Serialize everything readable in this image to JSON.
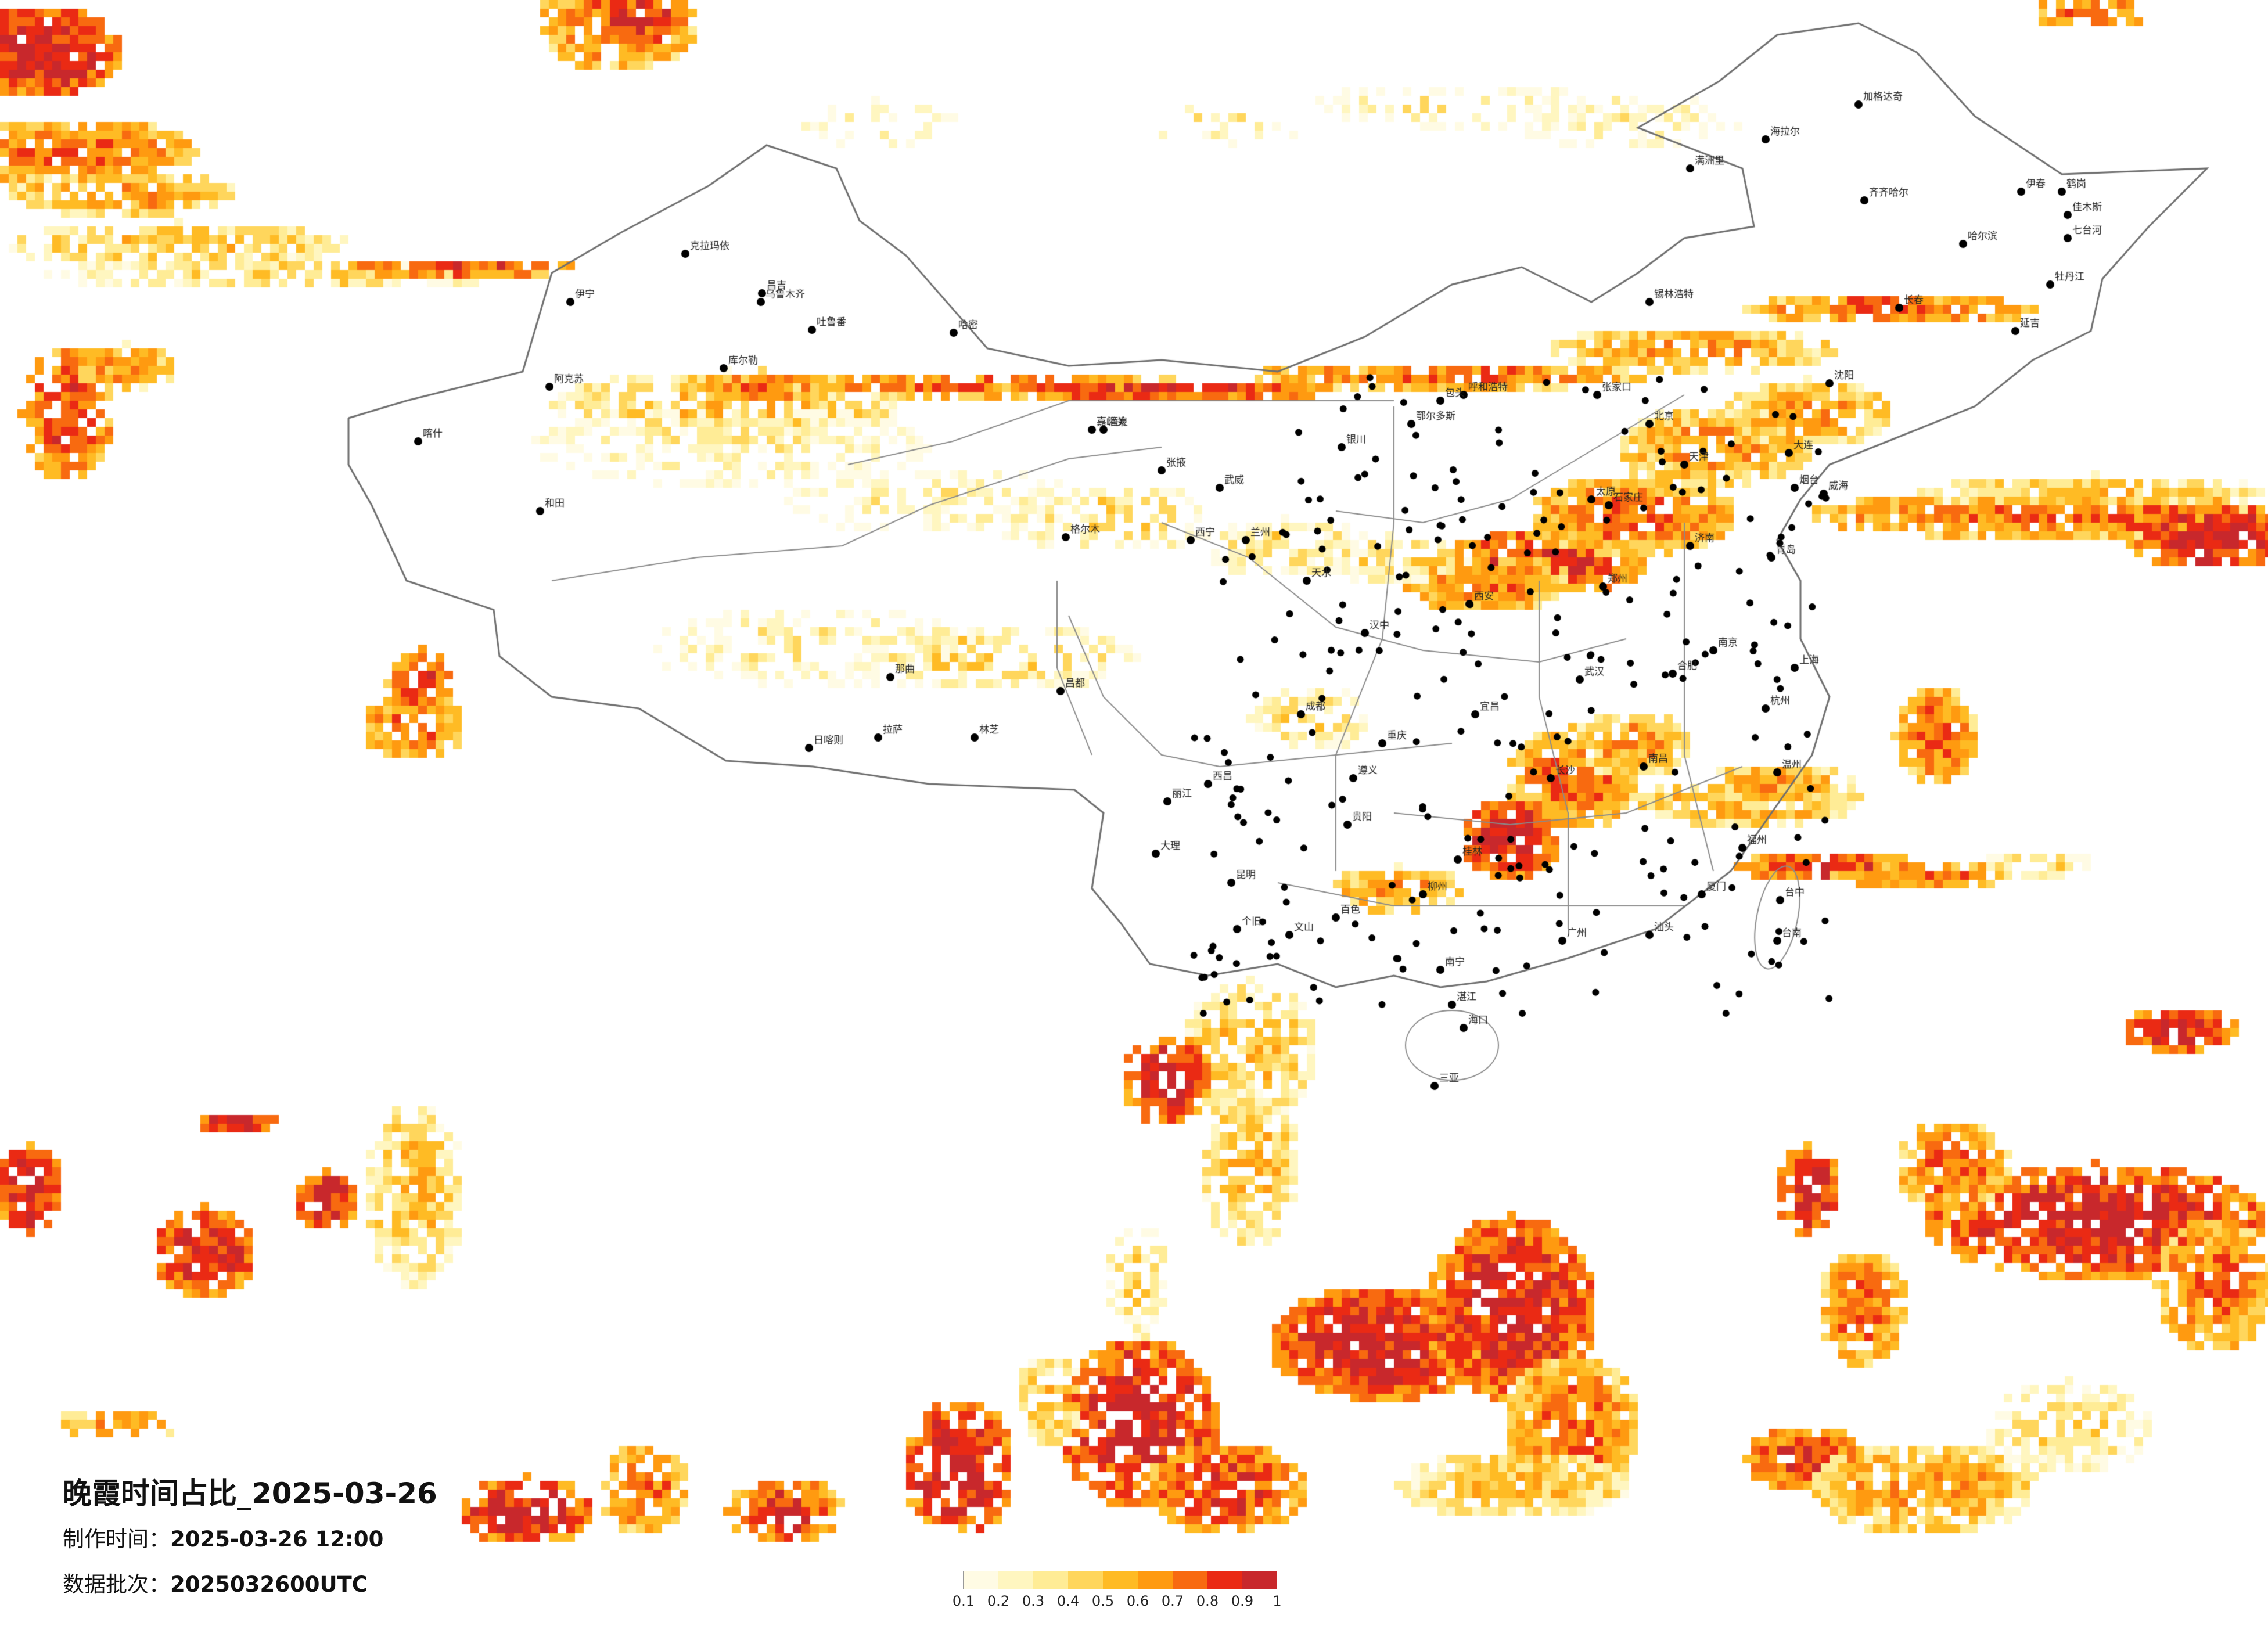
{
  "title": "晚霞时间占比_2025-03-26",
  "made_time_label": "制作时间：",
  "made_time_value": "2025-03-26 12:00",
  "batch_label": "数据批次：",
  "batch_value": "2025032600UTC",
  "legend": {
    "ticks": [
      "0.1",
      "0.2",
      "0.3",
      "0.4",
      "0.5",
      "0.6",
      "0.7",
      "0.8",
      "0.9",
      "1"
    ],
    "colors": [
      "#fffbe4",
      "#fff6c0",
      "#ffec96",
      "#ffd65c",
      "#ffbb24",
      "#ff9a10",
      "#f86a10",
      "#ea2a14",
      "#c8282c"
    ]
  },
  "cities": [
    {
      "name": "乌鲁木齐",
      "dot": [
        1310,
        520
      ]
    },
    {
      "name": "昌吉",
      "dot": [
        1312,
        505
      ]
    },
    {
      "name": "克拉玛依",
      "dot": [
        1180,
        437
      ]
    },
    {
      "name": "伊宁",
      "dot": [
        982,
        520
      ]
    },
    {
      "name": "吐鲁番",
      "dot": [
        1398,
        568
      ]
    },
    {
      "name": "哈密",
      "dot": [
        1642,
        573
      ]
    },
    {
      "name": "库尔勒",
      "dot": [
        1246,
        634
      ]
    },
    {
      "name": "阿克苏",
      "dot": [
        946,
        666
      ]
    },
    {
      "name": "喀什",
      "dot": [
        720,
        760
      ]
    },
    {
      "name": "和田",
      "dot": [
        930,
        880
      ]
    },
    {
      "name": "拉萨",
      "dot": [
        1512,
        1270
      ]
    },
    {
      "name": "日喀则",
      "dot": [
        1393,
        1288
      ]
    },
    {
      "name": "那曲",
      "dot": [
        1533,
        1166
      ]
    },
    {
      "name": "林芝",
      "dot": [
        1678,
        1270
      ]
    },
    {
      "name": "昌都",
      "dot": [
        1826,
        1190
      ]
    },
    {
      "name": "西宁",
      "dot": [
        2050,
        930
      ]
    },
    {
      "name": "格尔木",
      "dot": [
        1835,
        925
      ]
    },
    {
      "name": "兰州",
      "dot": [
        2145,
        930
      ]
    },
    {
      "name": "银川",
      "dot": [
        2310,
        770
      ]
    },
    {
      "name": "呼和浩特",
      "dot": [
        2520,
        680
      ]
    },
    {
      "name": "包头",
      "dot": [
        2480,
        690
      ]
    },
    {
      "name": "西安",
      "dot": [
        2530,
        1040
      ]
    },
    {
      "name": "太原",
      "dot": [
        2740,
        860
      ]
    },
    {
      "name": "北京",
      "dot": [
        2840,
        730
      ]
    },
    {
      "name": "天津",
      "dot": [
        2900,
        800
      ]
    },
    {
      "name": "石家庄",
      "dot": [
        2770,
        870
      ]
    },
    {
      "name": "济南",
      "dot": [
        2910,
        940
      ]
    },
    {
      "name": "郑州",
      "dot": [
        2760,
        1010
      ]
    },
    {
      "name": "武汉",
      "dot": [
        2720,
        1170
      ]
    },
    {
      "name": "长沙",
      "dot": [
        2670,
        1340
      ]
    },
    {
      "name": "南昌",
      "dot": [
        2830,
        1320
      ]
    },
    {
      "name": "合肥",
      "dot": [
        2880,
        1160
      ]
    },
    {
      "name": "南京",
      "dot": [
        2950,
        1120
      ]
    },
    {
      "name": "上海",
      "dot": [
        3090,
        1150
      ]
    },
    {
      "name": "杭州",
      "dot": [
        3040,
        1220
      ]
    },
    {
      "name": "福州",
      "dot": [
        3000,
        1460
      ]
    },
    {
      "name": "广州",
      "dot": [
        2690,
        1620
      ]
    },
    {
      "name": "南宁",
      "dot": [
        2480,
        1670
      ]
    },
    {
      "name": "海口",
      "dot": [
        2520,
        1770
      ]
    },
    {
      "name": "贵阳",
      "dot": [
        2320,
        1420
      ]
    },
    {
      "name": "昆明",
      "dot": [
        2120,
        1520
      ]
    },
    {
      "name": "成都",
      "dot": [
        2240,
        1230
      ]
    },
    {
      "name": "重庆",
      "dot": [
        2380,
        1280
      ]
    },
    {
      "name": "沈阳",
      "dot": [
        3150,
        660
      ]
    },
    {
      "name": "长春",
      "dot": [
        3270,
        530
      ]
    },
    {
      "name": "哈尔滨",
      "dot": [
        3380,
        420
      ]
    },
    {
      "name": "大连",
      "dot": [
        3080,
        780
      ]
    },
    {
      "name": "青岛",
      "dot": [
        3050,
        960
      ]
    },
    {
      "name": "台中",
      "dot": [
        3065,
        1550
      ]
    },
    {
      "name": "台南",
      "dot": [
        3060,
        1620
      ]
    },
    {
      "name": "齐齐哈尔",
      "dot": [
        3210,
        345
      ]
    },
    {
      "name": "海拉尔",
      "dot": [
        3040,
        240
      ]
    },
    {
      "name": "加格达奇",
      "dot": [
        3200,
        180
      ]
    },
    {
      "name": "鹤岗",
      "dot": [
        3550,
        330
      ]
    },
    {
      "name": "佳木斯",
      "dot": [
        3560,
        370
      ]
    },
    {
      "name": "牡丹江",
      "dot": [
        3530,
        490
      ]
    },
    {
      "name": "满洲里",
      "dot": [
        2910,
        290
      ]
    },
    {
      "name": "锡林浩特",
      "dot": [
        2840,
        520
      ]
    },
    {
      "name": "张家口",
      "dot": [
        2750,
        680
      ]
    },
    {
      "name": "鄂尔多斯",
      "dot": [
        2430,
        730
      ]
    },
    {
      "name": "嘉峪关",
      "dot": [
        1880,
        740
      ]
    },
    {
      "name": "酒泉",
      "dot": [
        1900,
        740
      ]
    },
    {
      "name": "张掖",
      "dot": [
        2000,
        810
      ]
    },
    {
      "name": "武威",
      "dot": [
        2100,
        840
      ]
    },
    {
      "name": "天水",
      "dot": [
        2250,
        1000
      ]
    },
    {
      "name": "汉中",
      "dot": [
        2350,
        1090
      ]
    },
    {
      "name": "宜昌",
      "dot": [
        2540,
        1230
      ]
    },
    {
      "name": "桂林",
      "dot": [
        2510,
        1480
      ]
    },
    {
      "name": "柳州",
      "dot": [
        2450,
        1540
      ]
    },
    {
      "name": "百色",
      "dot": [
        2300,
        1580
      ]
    },
    {
      "name": "大理",
      "dot": [
        1990,
        1470
      ]
    },
    {
      "name": "丽江",
      "dot": [
        2010,
        1380
      ]
    },
    {
      "name": "个旧",
      "dot": [
        2130,
        1600
      ]
    },
    {
      "name": "文山",
      "dot": [
        2220,
        1610
      ]
    },
    {
      "name": "西昌",
      "dot": [
        2080,
        1350
      ]
    },
    {
      "name": "遵义",
      "dot": [
        2330,
        1340
      ]
    },
    {
      "name": "温州",
      "dot": [
        3060,
        1330
      ]
    },
    {
      "name": "厦门",
      "dot": [
        2930,
        1540
      ]
    },
    {
      "name": "汕头",
      "dot": [
        2840,
        1610
      ]
    },
    {
      "name": "湛江",
      "dot": [
        2500,
        1730
      ]
    },
    {
      "name": "三亚",
      "dot": [
        2470,
        1870
      ]
    },
    {
      "name": "烟台",
      "dot": [
        3090,
        840
      ]
    },
    {
      "name": "威海",
      "dot": [
        3140,
        850
      ]
    },
    {
      "name": "延吉",
      "dot": [
        3470,
        570
      ]
    },
    {
      "name": "七台河",
      "dot": [
        3560,
        410
      ]
    },
    {
      "name": "伊春",
      "dot": [
        3480,
        330
      ]
    }
  ]
}
